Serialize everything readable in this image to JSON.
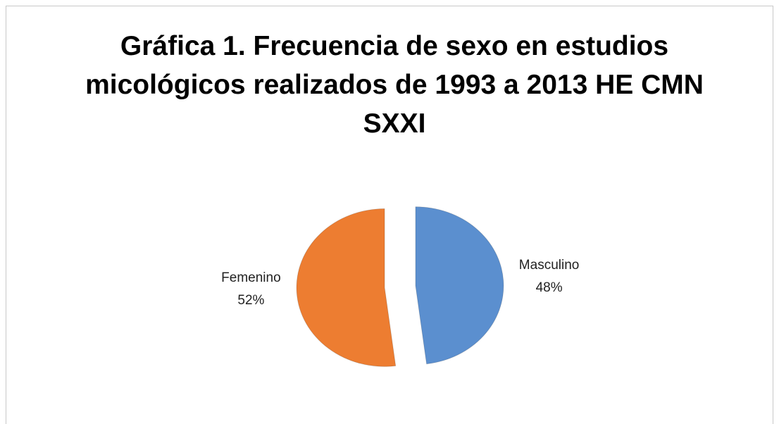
{
  "chart_data": {
    "type": "pie",
    "title": "Gráfica 1. Frecuencia de sexo en estudios micológicos realizados de 1993 a 2013 HE CMN SXXI",
    "categories": [
      "Masculino",
      "Femenino"
    ],
    "values": [
      48,
      52
    ],
    "value_labels": [
      "48%",
      "52%"
    ],
    "colors": [
      "#5b8fcf",
      "#ed7d31"
    ],
    "exploded": true
  }
}
